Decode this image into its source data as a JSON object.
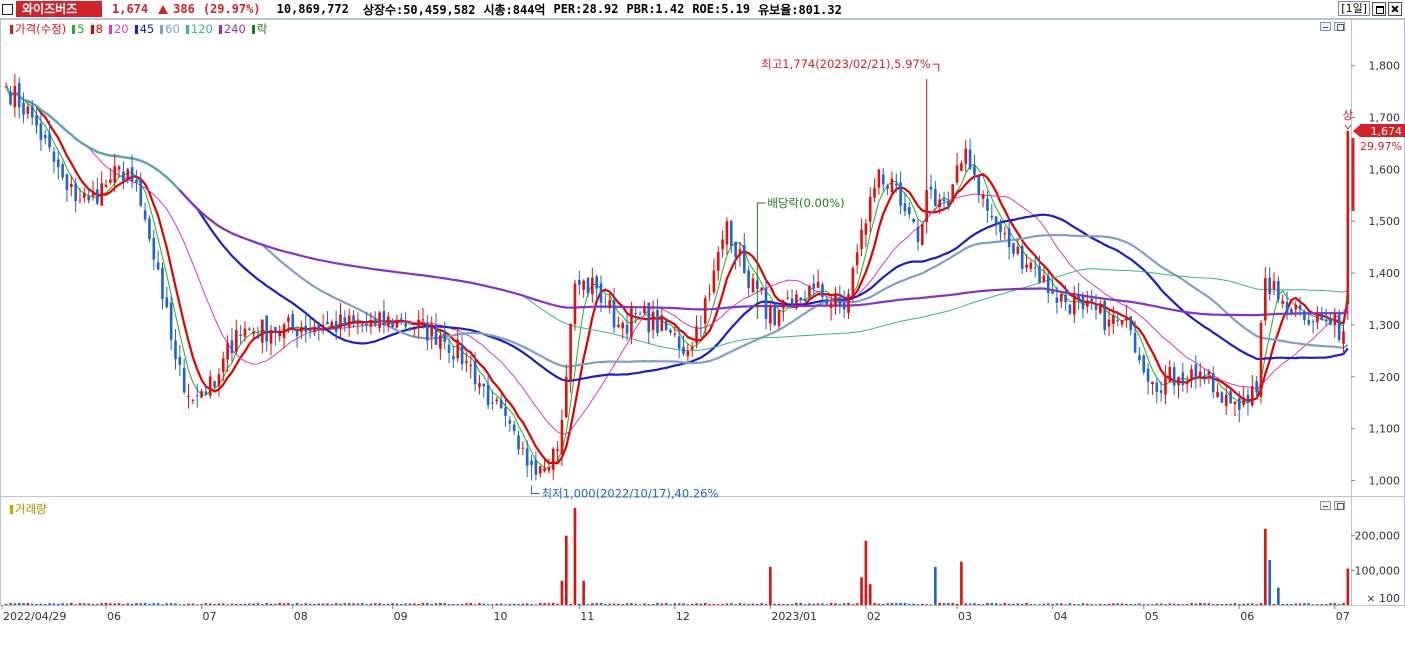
{
  "stock": {
    "name": "와이즈버즈",
    "price": "1,674",
    "change": "386",
    "change_pct": "(29.97%)",
    "volume": "10,869,772",
    "shares": "상장수:50,459,582",
    "market_cap": "시총:844억",
    "per": "PER:28.92",
    "pbr": "PBR:1.42",
    "roe": "ROE:5.19",
    "reserve": "유보율:801.32"
  },
  "toolbar": {
    "period": "[1일]"
  },
  "price_legend": {
    "price_label": "가격(수정)",
    "ma_labels": [
      "5",
      "8",
      "20",
      "45",
      "60",
      "120",
      "240"
    ],
    "drop_label": "락"
  },
  "volume_legend": {
    "label": "거래량"
  },
  "colors": {
    "up": "#e01010",
    "down": "#1f64c8",
    "ma5": "#22b022",
    "ma8": "#e00000",
    "ma20": "#d43cc8",
    "ma45": "#1a20c0",
    "ma60": "#7f9fc8",
    "ma120": "#3cb48c",
    "ma240": "#8a32c0",
    "accent": "#d1232a",
    "grid": "#b9c4d6"
  },
  "annotations": {
    "high": "최고1,774(2023/02/21),5.97%",
    "low": "최저1,000(2022/10/17),40.26%",
    "dividend": "배당락(0.00%)",
    "limit_up": "상",
    "price_tag": "1,674",
    "pct_tag": "29.97%"
  },
  "chart_data": [
    {
      "type": "candlestick",
      "title": "가격(수정)",
      "ylim": [
        970,
        1890
      ],
      "yticks": [
        "1,800",
        "1,700",
        "1,600",
        "1,500",
        "1,400",
        "1,300",
        "1,200",
        "1,100",
        "1,000"
      ],
      "ytick_values": [
        1800,
        1700,
        1600,
        1500,
        1400,
        1300,
        1200,
        1100,
        1000
      ],
      "x_tick_labels": [
        "2022/04/29",
        "06",
        "07",
        "08",
        "09",
        "10",
        "11",
        "12",
        "2023/01",
        "02",
        "03",
        "04",
        "05",
        "06",
        "07"
      ],
      "x_tick_dates": [
        "2022-04-29",
        "2022-06-01",
        "2022-07-01",
        "2022-08-01",
        "2022-09-01",
        "2022-10-04",
        "2022-11-01",
        "2022-12-01",
        "2023-01-02",
        "2023-02-01",
        "2023-03-02",
        "2023-04-03",
        "2023-05-02",
        "2023-06-01",
        "2023-07-03"
      ],
      "price_keyframes": [
        {
          "date": "2022-04-29",
          "close": 1760
        },
        {
          "date": "2022-05-09",
          "close": 1700
        },
        {
          "date": "2022-05-19",
          "close": 1560
        },
        {
          "date": "2022-05-26",
          "close": 1540
        },
        {
          "date": "2022-06-02",
          "close": 1580
        },
        {
          "date": "2022-06-08",
          "close": 1600
        },
        {
          "date": "2022-06-13",
          "close": 1530
        },
        {
          "date": "2022-06-20",
          "close": 1350
        },
        {
          "date": "2022-06-27",
          "close": 1170
        },
        {
          "date": "2022-07-06",
          "close": 1180
        },
        {
          "date": "2022-07-13",
          "close": 1290
        },
        {
          "date": "2022-07-25",
          "close": 1290
        },
        {
          "date": "2022-08-10",
          "close": 1300
        },
        {
          "date": "2022-08-26",
          "close": 1300
        },
        {
          "date": "2022-09-02",
          "close": 1310
        },
        {
          "date": "2022-09-16",
          "close": 1280
        },
        {
          "date": "2022-09-26",
          "close": 1230
        },
        {
          "date": "2022-10-04",
          "close": 1150
        },
        {
          "date": "2022-10-12",
          "close": 1060
        },
        {
          "date": "2022-10-17",
          "close": 1030
        },
        {
          "date": "2022-10-25",
          "close": 1060
        },
        {
          "date": "2022-10-27",
          "close": 1200
        },
        {
          "date": "2022-10-31",
          "close": 1380
        },
        {
          "date": "2022-11-07",
          "close": 1370
        },
        {
          "date": "2022-11-14",
          "close": 1300
        },
        {
          "date": "2022-11-21",
          "close": 1320
        },
        {
          "date": "2022-11-29",
          "close": 1290
        },
        {
          "date": "2022-12-06",
          "close": 1250
        },
        {
          "date": "2022-12-13",
          "close": 1360
        },
        {
          "date": "2022-12-19",
          "close": 1500
        },
        {
          "date": "2022-12-23",
          "close": 1400
        },
        {
          "date": "2022-12-28",
          "close": 1370
        },
        {
          "date": "2023-01-03",
          "close": 1300
        },
        {
          "date": "2023-01-09",
          "close": 1340
        },
        {
          "date": "2023-01-16",
          "close": 1370
        },
        {
          "date": "2023-01-25",
          "close": 1330
        },
        {
          "date": "2023-01-30",
          "close": 1440
        },
        {
          "date": "2023-02-06",
          "close": 1600
        },
        {
          "date": "2023-02-13",
          "close": 1530
        },
        {
          "date": "2023-02-17",
          "close": 1460
        },
        {
          "date": "2023-02-21",
          "close": 1560
        },
        {
          "date": "2023-02-28",
          "close": 1530
        },
        {
          "date": "2023-03-06",
          "close": 1640
        },
        {
          "date": "2023-03-13",
          "close": 1520
        },
        {
          "date": "2023-03-20",
          "close": 1450
        },
        {
          "date": "2023-03-27",
          "close": 1420
        },
        {
          "date": "2023-04-03",
          "close": 1360
        },
        {
          "date": "2023-04-12",
          "close": 1330
        },
        {
          "date": "2023-04-20",
          "close": 1310
        },
        {
          "date": "2023-04-27",
          "close": 1290
        },
        {
          "date": "2023-05-04",
          "close": 1190
        },
        {
          "date": "2023-05-12",
          "close": 1200
        },
        {
          "date": "2023-05-19",
          "close": 1210
        },
        {
          "date": "2023-05-26",
          "close": 1150
        },
        {
          "date": "2023-06-02",
          "close": 1160
        },
        {
          "date": "2023-06-07",
          "close": 1170
        },
        {
          "date": "2023-06-09",
          "close": 1390
        },
        {
          "date": "2023-06-14",
          "close": 1350
        },
        {
          "date": "2023-06-21",
          "close": 1330
        },
        {
          "date": "2023-06-28",
          "close": 1310
        },
        {
          "date": "2023-07-05",
          "close": 1288
        },
        {
          "date": "2023-07-06",
          "close": 1674
        }
      ],
      "last": {
        "open": 1340,
        "high": 1674,
        "low": 1310,
        "close": 1674
      },
      "high_marker": {
        "date": "2023-02-21",
        "value": 1774
      },
      "low_marker": {
        "date": "2022-10-17",
        "value": 1000
      },
      "dividend_marker": {
        "date": "2022-12-28"
      },
      "ma_windows": [
        5,
        8,
        20,
        45,
        60,
        120,
        240
      ]
    },
    {
      "type": "bar",
      "title": "거래량",
      "yticks": [
        "200,000",
        "100,000"
      ],
      "ytick_values": [
        200000,
        100000
      ],
      "unit": "× 100",
      "ylim": [
        0,
        300000
      ],
      "spikes": [
        {
          "date": "2022-10-26",
          "value": 70000
        },
        {
          "date": "2022-10-27",
          "value": 200000
        },
        {
          "date": "2022-10-31",
          "value": 280000
        },
        {
          "date": "2022-11-02",
          "value": 70000
        },
        {
          "date": "2023-01-02",
          "value": 110000
        },
        {
          "date": "2023-01-31",
          "value": 80000
        },
        {
          "date": "2023-02-01",
          "value": 185000
        },
        {
          "date": "2023-02-02",
          "value": 60000
        },
        {
          "date": "2023-02-23",
          "value": 110000
        },
        {
          "date": "2023-03-03",
          "value": 125000
        },
        {
          "date": "2023-06-09",
          "value": 220000
        },
        {
          "date": "2023-06-12",
          "value": 130000
        },
        {
          "date": "2023-06-14",
          "value": 50000
        },
        {
          "date": "2023-07-06",
          "value": 105000
        }
      ]
    }
  ]
}
